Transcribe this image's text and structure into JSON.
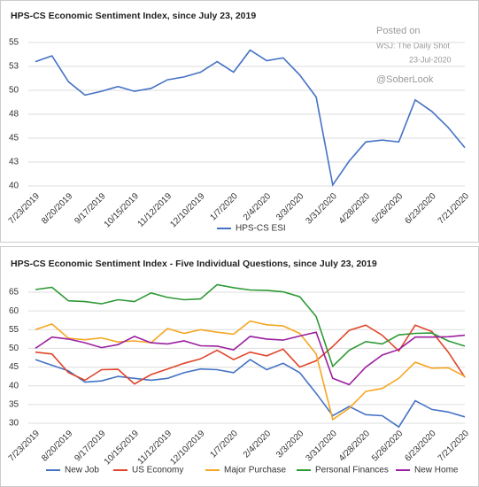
{
  "chart_data": [
    {
      "type": "line",
      "title": "HPS-CS Economic Sentiment Index, since July 23, 2019",
      "annotations": [
        "Posted on",
        "WSJ: The Daily Shot",
        "23-Jul-2020",
        "@SoberLook"
      ],
      "categories": [
        "7/23/2019",
        null,
        "8/20/2019",
        null,
        "9/17/2019",
        null,
        "10/15/2019",
        null,
        "11/12/2019",
        null,
        "12/10/2019",
        null,
        "1/7/2020",
        null,
        "2/4/2020",
        null,
        "3/3/2020",
        null,
        "3/31/2020",
        null,
        "4/28/2020",
        null,
        "5/26/2020",
        null,
        "6/23/2020",
        null,
        "7/21/2020"
      ],
      "series": [
        {
          "name": "HPS-CS ESI",
          "color": "#4472c4",
          "values": [
            53,
            53.6,
            50.9,
            49.5,
            49.9,
            50.4,
            49.9,
            50.2,
            51.1,
            51.4,
            51.9,
            53,
            51.9,
            54.2,
            53.1,
            53.4,
            51.6,
            49.3,
            40.1,
            42.6,
            44.6,
            44.8,
            44.6,
            49,
            47.8,
            46.1,
            44
          ]
        }
      ],
      "ylim": [
        40,
        55
      ],
      "yticks": [
        40,
        {
          "value": 42.5,
          "label": "43"
        },
        45,
        {
          "value": 47.5,
          "label": "48"
        },
        50,
        {
          "value": 52.5,
          "label": "53"
        },
        55
      ],
      "grid": true,
      "legend": "bottom"
    },
    {
      "type": "line",
      "title": "HPS-CS Economic Sentiment Index - Five Individual Questions, since July 23, 2019",
      "categories": [
        "7/23/2019",
        null,
        "8/20/2019",
        null,
        "9/17/2019",
        null,
        "10/15/2019",
        null,
        "11/12/2019",
        null,
        "12/10/2019",
        null,
        "1/7/2020",
        null,
        "2/4/2020",
        null,
        "3/3/2020",
        null,
        "3/31/2020",
        null,
        "4/28/2020",
        null,
        "5/26/2020",
        null,
        "6/23/2020",
        null,
        "7/21/2020"
      ],
      "series": [
        {
          "name": "New Job",
          "color": "#4472c4",
          "values": [
            47,
            45.5,
            44,
            41,
            41.3,
            42.5,
            42,
            41.5,
            42,
            43.5,
            44.5,
            44.3,
            43.5,
            47,
            44.3,
            46,
            43.5,
            38,
            32,
            34.5,
            32.3,
            32,
            29,
            36,
            33.7,
            33,
            31.7
          ]
        },
        {
          "name": "US Economy",
          "color": "#e0452b",
          "values": [
            49,
            48.5,
            43.5,
            41.5,
            44.3,
            44.4,
            40.5,
            43,
            44.5,
            46,
            47.2,
            49.5,
            47,
            49,
            48,
            49.8,
            45,
            46.7,
            50.5,
            54.8,
            56.2,
            53.5,
            49.3,
            56.2,
            54.5,
            49,
            42.3
          ]
        },
        {
          "name": "Major Purchase",
          "color": "#f5a623",
          "values": [
            55,
            56.5,
            52.7,
            52.3,
            52.8,
            51.7,
            52,
            51.5,
            55.3,
            54,
            55,
            54.3,
            53.8,
            57.3,
            56.3,
            56,
            54,
            48.5,
            31,
            34,
            38.5,
            39.3,
            42,
            46.3,
            44.7,
            44.8,
            42.5
          ]
        },
        {
          "name": "Personal Finances",
          "color": "#2e9a36",
          "values": [
            65.7,
            66.3,
            62.7,
            62.5,
            61.9,
            63,
            62.5,
            64.8,
            63.6,
            63,
            63.2,
            67,
            66.2,
            65.6,
            65.5,
            65.1,
            63.8,
            58.5,
            45.2,
            49.5,
            51.8,
            51.2,
            53.6,
            54,
            54.1,
            52,
            50.6
          ]
        },
        {
          "name": "New Home",
          "color": "#9b1fa0",
          "values": [
            50,
            53,
            52.5,
            51.5,
            50.2,
            51,
            53.2,
            51.5,
            51.2,
            52,
            50.7,
            50.6,
            49.6,
            53.2,
            52.5,
            52.2,
            53.3,
            54.3,
            42,
            40.3,
            45,
            48.2,
            49.7,
            53,
            53,
            53.1,
            53.5
          ]
        }
      ],
      "ylim": [
        30,
        65
      ],
      "yticks": [
        30,
        35,
        40,
        45,
        50,
        55,
        60,
        65
      ],
      "grid": true,
      "legend": "bottom"
    }
  ]
}
